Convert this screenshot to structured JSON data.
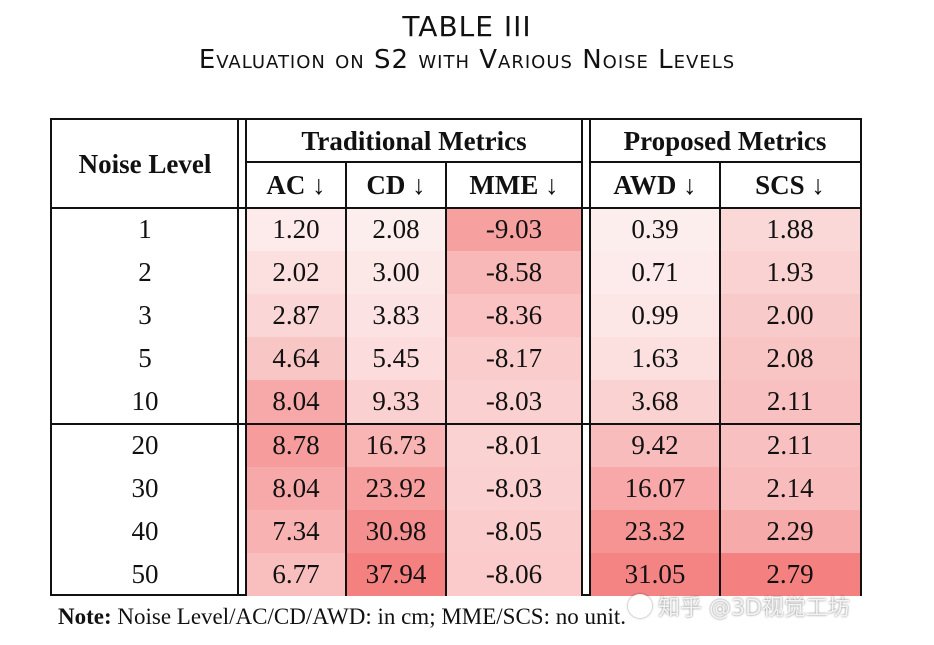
{
  "caption": {
    "table_number": "TABLE III",
    "title": "Evaluation on S2 with Various Noise Levels"
  },
  "headers": {
    "noise_level": "Noise Level",
    "traditional": "Traditional Metrics",
    "proposed": "Proposed Metrics",
    "columns": [
      "AC ↓",
      "CD ↓",
      "MME ↓",
      "AWD ↓",
      "SCS ↓"
    ]
  },
  "rows": [
    {
      "noise": "1",
      "values": [
        "1.20",
        "2.08",
        "-9.03",
        "0.39",
        "1.88"
      ]
    },
    {
      "noise": "2",
      "values": [
        "2.02",
        "3.00",
        "-8.58",
        "0.71",
        "1.93"
      ]
    },
    {
      "noise": "3",
      "values": [
        "2.87",
        "3.83",
        "-8.36",
        "0.99",
        "2.00"
      ]
    },
    {
      "noise": "5",
      "values": [
        "4.64",
        "5.45",
        "-8.17",
        "1.63",
        "2.08"
      ]
    },
    {
      "noise": "10",
      "values": [
        "8.04",
        "9.33",
        "-8.03",
        "3.68",
        "2.11"
      ]
    },
    {
      "noise": "20",
      "values": [
        "8.78",
        "16.73",
        "-8.01",
        "9.42",
        "2.11"
      ]
    },
    {
      "noise": "30",
      "values": [
        "8.04",
        "23.92",
        "-8.03",
        "16.07",
        "2.14"
      ]
    },
    {
      "noise": "40",
      "values": [
        "7.34",
        "30.98",
        "-8.05",
        "23.32",
        "2.29"
      ]
    },
    {
      "noise": "50",
      "values": [
        "6.77",
        "37.94",
        "-8.06",
        "31.05",
        "2.79"
      ]
    }
  ],
  "heat_colors": [
    [
      "#fdeaea",
      "#fdeeee",
      "#f7a0a0",
      "#fdeeee",
      "#fad8d8"
    ],
    [
      "#fce0e0",
      "#fde8e8",
      "#f9b8b8",
      "#fdeaea",
      "#fad2d2"
    ],
    [
      "#fbd6d6",
      "#fce2e2",
      "#fac2c2",
      "#fde6e6",
      "#f9caca"
    ],
    [
      "#f9c6c6",
      "#fcdcdc",
      "#fbcccc",
      "#fce0e0",
      "#f9c4c4"
    ],
    [
      "#f7a8a8",
      "#fbd0d0",
      "#fbd0d0",
      "#fbd2d2",
      "#f8c0c0"
    ],
    [
      "#f69c9c",
      "#f9b4b4",
      "#fbd2d2",
      "#f9bcbc",
      "#f8c0c0"
    ],
    [
      "#f7a8a8",
      "#f79e9e",
      "#fbd0d0",
      "#f8a8a8",
      "#f8bcbc"
    ],
    [
      "#f8b2b2",
      "#f58e8e",
      "#fbcccc",
      "#f69494",
      "#f7aaaa"
    ],
    [
      "#f9bebe",
      "#f48080",
      "#fbcaca",
      "#f48484",
      "#f48080"
    ]
  ],
  "note": {
    "label": "Note:",
    "text": "Noise Level/AC/CD/AWD: in cm; MME/SCS: no unit."
  },
  "watermark": "知乎 @3D视觉工坊"
}
